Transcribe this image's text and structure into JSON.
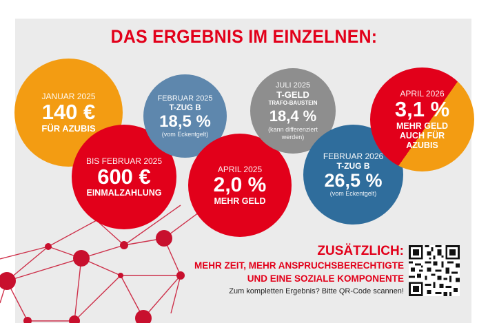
{
  "title": "DAS ERGEBNIS IM EINZELNEN:",
  "circles": {
    "jan": {
      "label": "JANUAR 2025",
      "value": "140 €",
      "text": "FÜR AZUBIS"
    },
    "feb_t": {
      "label": "FEBRUAR 2025",
      "sub": "T-ZUG B",
      "value": "18,5 %",
      "note": "(vom Eckentgelt)"
    },
    "juli": {
      "label": "JULI 2025",
      "head": "T-GELD",
      "sub": "TRAFO-BAUSTEIN",
      "value": "18,4 %",
      "note": "(kann differenziert werden)"
    },
    "apr26": {
      "label": "APRIL 2026",
      "value": "3,1 %",
      "text1": "MEHR GELD",
      "text2": "AUCH FÜR",
      "text3": "AZUBIS"
    },
    "bis_feb": {
      "label": "BIS FEBRUAR 2025",
      "value": "600 €",
      "text": "EINMALZAHLUNG"
    },
    "apr25": {
      "label": "APRIL 2025",
      "value": "2,0 %",
      "text": "MEHR GELD"
    },
    "feb26": {
      "label": "FEBRUAR 2026",
      "sub": "T-ZUG B",
      "value": "26,5 %",
      "note": "(vom Eckentgelt)"
    }
  },
  "extra": {
    "heading": "ZUSÄTZLICH:",
    "line1": "MEHR ZEIT, MEHR ANSPRUCHSBERECHTIGTE",
    "line2": "UND EINE SOZIALE KOMPONENTE",
    "cta": "Zum kompletten Ergebnis? Bitte QR-Code scannen!"
  },
  "colors": {
    "red": "#e2001a",
    "orange": "#f39c12",
    "blue": "#5e87ad",
    "blue_dark": "#2f6d9c",
    "grey": "#8e8e8e"
  }
}
